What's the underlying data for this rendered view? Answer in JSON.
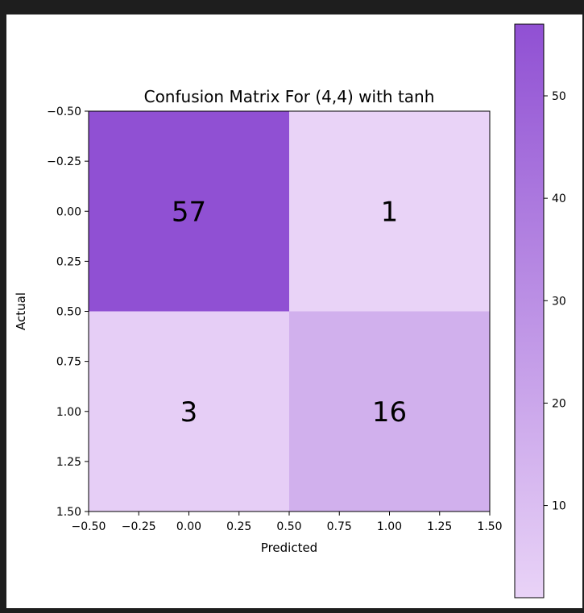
{
  "chart_data": {
    "type": "heatmap",
    "title": "Confusion Matrix For (4,4) with tanh",
    "xlabel": "Predicted",
    "ylabel": "Actual",
    "matrix": [
      [
        57,
        1
      ],
      [
        3,
        16
      ]
    ],
    "cell_labels": [
      [
        "57",
        "1"
      ],
      [
        "3",
        "16"
      ]
    ],
    "xlim": [
      -0.5,
      1.5
    ],
    "ylim": [
      1.5,
      -0.5
    ],
    "xticks": [
      -0.5,
      -0.25,
      0.0,
      0.25,
      0.5,
      0.75,
      1.0,
      1.25,
      1.5
    ],
    "xtick_labels": [
      "−0.50",
      "−0.25",
      "0.00",
      "0.25",
      "0.50",
      "0.75",
      "1.00",
      "1.25",
      "1.50"
    ],
    "yticks": [
      -0.5,
      -0.25,
      0.0,
      0.25,
      0.5,
      0.75,
      1.0,
      1.25,
      1.5
    ],
    "ytick_labels": [
      "−0.50",
      "−0.25",
      "0.00",
      "0.25",
      "0.50",
      "0.75",
      "1.00",
      "1.25",
      "1.50"
    ],
    "colorbar": {
      "min": 1,
      "max": 57,
      "ticks": [
        10,
        20,
        30,
        40,
        50
      ],
      "tick_labels": [
        "10",
        "20",
        "30",
        "40",
        "50"
      ],
      "low_color": "#e9d3f7",
      "high_color": "#9050d3"
    },
    "grid": false
  }
}
